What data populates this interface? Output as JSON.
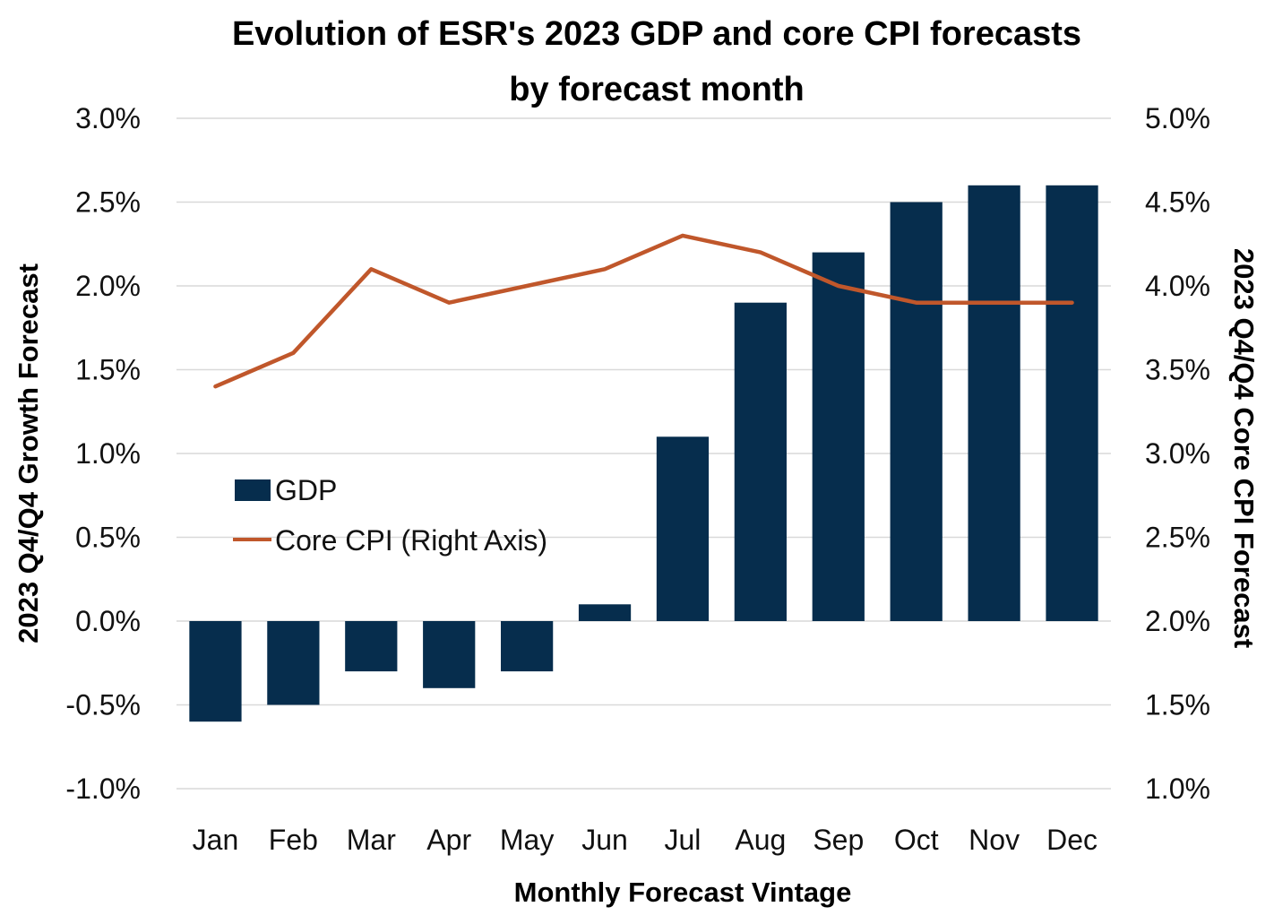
{
  "chart_data": {
    "type": "bar",
    "title": "Evolution of ESR's 2023 GDP and core CPI forecasts by forecast month",
    "title_lines": [
      "Evolution of ESR's 2023 GDP and core CPI forecasts",
      "by forecast month"
    ],
    "xlabel": "Monthly Forecast Vintage",
    "ylabel": "2023 Q4/Q4 Growth Forecast",
    "y2label": "2023 Q4/Q4 Core CPI Forecast",
    "categories": [
      "Jan",
      "Feb",
      "Mar",
      "Apr",
      "May",
      "Jun",
      "Jul",
      "Aug",
      "Sep",
      "Oct",
      "Nov",
      "Dec"
    ],
    "ylim": [
      -1.0,
      3.0
    ],
    "y2lim": [
      1.0,
      5.0
    ],
    "yticks": [
      "3.0%",
      "2.5%",
      "2.0%",
      "1.5%",
      "1.0%",
      "0.5%",
      "0.0%",
      "-0.5%",
      "-1.0%"
    ],
    "y2ticks": [
      "5.0%",
      "4.5%",
      "4.0%",
      "3.5%",
      "3.0%",
      "2.5%",
      "2.0%",
      "1.5%",
      "1.0%"
    ],
    "grid": true,
    "legend_position": "left-middle",
    "series": [
      {
        "name": "GDP",
        "type": "bar",
        "axis": "left",
        "color": "#062d4d",
        "values": [
          -0.6,
          -0.5,
          -0.3,
          -0.4,
          -0.3,
          0.1,
          1.1,
          1.9,
          2.2,
          2.5,
          2.6,
          2.6
        ]
      },
      {
        "name": "Core CPI (Right Axis)",
        "type": "line",
        "axis": "right",
        "color": "#c0572b",
        "values": [
          3.4,
          3.6,
          4.1,
          3.9,
          4.0,
          4.1,
          4.3,
          4.2,
          4.0,
          3.9,
          3.9,
          3.9
        ]
      }
    ]
  }
}
